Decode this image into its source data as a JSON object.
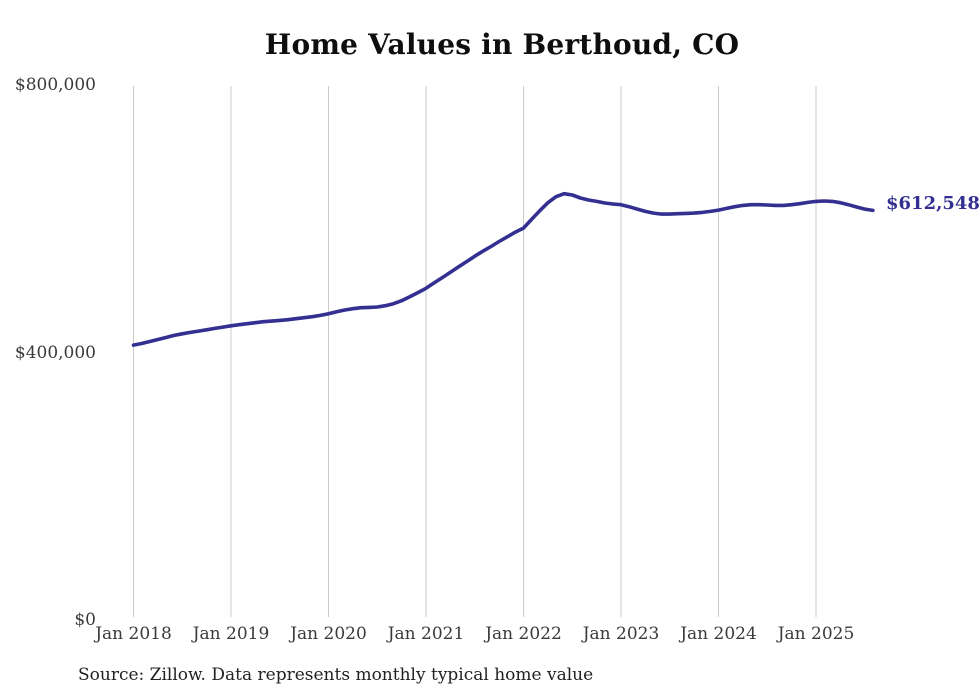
{
  "chart_data": {
    "type": "line",
    "title": "Home Values in Berthoud, CO",
    "source": "Source: Zillow. Data represents monthly typical home value",
    "end_label": "$612,548",
    "end_value": 612548,
    "line_color": "#333091",
    "grid_color": "#cbcbcb",
    "grid": "vertical-year-lines-only",
    "legend_position": "none",
    "ylim": [
      0,
      800000
    ],
    "y_ticks": [
      {
        "label": "$800,000",
        "value": 800000
      },
      {
        "label": "$400,000",
        "value": 400000
      },
      {
        "label": "$0",
        "value": 0
      }
    ],
    "x_ticks": [
      "Jan 2018",
      "Jan 2019",
      "Jan 2020",
      "Jan 2021",
      "Jan 2022",
      "Jan 2023",
      "Jan 2024",
      "Jan 2025"
    ],
    "x_start": "Jan 2018",
    "x_end": "Aug 2025",
    "x_interval": "month",
    "series": [
      {
        "name": "Monthly typical home value",
        "values": [
          411000,
          413500,
          416500,
          419500,
          422500,
          425500,
          428000,
          430000,
          432000,
          434000,
          436000,
          438000,
          440000,
          441500,
          443000,
          444500,
          446000,
          447000,
          448000,
          449000,
          450500,
          452000,
          453500,
          455500,
          458000,
          461000,
          463500,
          465500,
          467000,
          467500,
          468000,
          470000,
          473000,
          477500,
          483500,
          489500,
          496000,
          504000,
          512000,
          520000,
          528000,
          536000,
          544000,
          551500,
          558500,
          566000,
          573000,
          580000,
          586000,
          599000,
          612000,
          624000,
          633000,
          637500,
          635500,
          631000,
          628000,
          626000,
          623500,
          622000,
          621000,
          618000,
          614500,
          611000,
          608500,
          607000,
          607000,
          607500,
          608000,
          608500,
          609500,
          611000,
          613000,
          615500,
          618000,
          620000,
          621000,
          621000,
          620500,
          620000,
          620000,
          621000,
          622500,
          624500,
          626000,
          626500,
          626000,
          624000,
          621000,
          617500,
          614500,
          612548
        ]
      }
    ]
  }
}
